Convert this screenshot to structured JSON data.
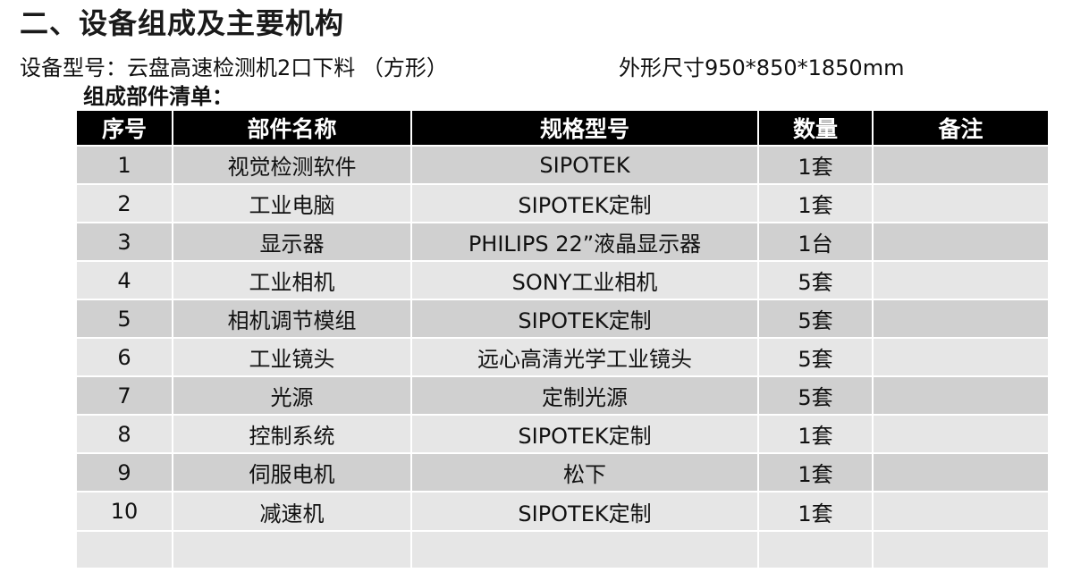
{
  "heading": "二、设备组成及主要机构",
  "equipment": {
    "model_line": "设备型号：云盘高速检测机2口下料  （方形）",
    "dimensions_line": "外形尺寸950*850*1850mm"
  },
  "parts_list": {
    "title": "组成部件清单：",
    "columns": [
      "序号",
      "部件名称",
      "规格型号",
      "数量",
      "备注"
    ],
    "rows": [
      {
        "no": "1",
        "name": "视觉检测软件",
        "spec": "SIPOTEK",
        "qty": "1套",
        "note": ""
      },
      {
        "no": "2",
        "name": "工业电脑",
        "spec": "SIPOTEK定制",
        "qty": "1套",
        "note": ""
      },
      {
        "no": "3",
        "name": "显示器",
        "spec": "PHILIPS  22”液晶显示器",
        "qty": "1台",
        "note": ""
      },
      {
        "no": "4",
        "name": "工业相机",
        "spec": "SONY工业相机",
        "qty": "5套",
        "note": ""
      },
      {
        "no": "5",
        "name": "相机调节模组",
        "spec": "SIPOTEK定制",
        "qty": "5套",
        "note": ""
      },
      {
        "no": "6",
        "name": "工业镜头",
        "spec": "远心高清光学工业镜头",
        "qty": "5套",
        "note": ""
      },
      {
        "no": "7",
        "name": "光源",
        "spec": "定制光源",
        "qty": "5套",
        "note": ""
      },
      {
        "no": "8",
        "name": "控制系统",
        "spec": "SIPOTEK定制",
        "qty": "1套",
        "note": ""
      },
      {
        "no": "9",
        "name": "伺服电机",
        "spec": "松下",
        "qty": "1套",
        "note": ""
      },
      {
        "no": "10",
        "name": "减速机",
        "spec": "SIPOTEK定制",
        "qty": "1套",
        "note": ""
      }
    ],
    "header_bg": "#000000",
    "header_fg": "#ffffff",
    "row_dark_bg": "#d0d0d0",
    "row_light_bg": "#e6e6e6"
  }
}
